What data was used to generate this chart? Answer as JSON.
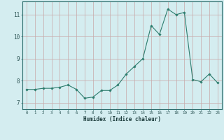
{
  "x": [
    0,
    1,
    2,
    3,
    4,
    5,
    6,
    7,
    8,
    9,
    10,
    11,
    12,
    13,
    14,
    15,
    16,
    17,
    18,
    19,
    20,
    21,
    22,
    23
  ],
  "y": [
    7.6,
    7.6,
    7.65,
    7.65,
    7.7,
    7.8,
    7.6,
    7.2,
    7.25,
    7.55,
    7.55,
    7.8,
    8.3,
    8.65,
    9.0,
    10.5,
    10.1,
    11.25,
    11.0,
    11.1,
    8.05,
    7.95,
    8.3,
    7.9
  ],
  "xlabel": "Humidex (Indice chaleur)",
  "ylim": [
    6.7,
    11.6
  ],
  "xlim": [
    -0.5,
    23.5
  ],
  "yticks": [
    7,
    8,
    9,
    10,
    11
  ],
  "xticks": [
    0,
    1,
    2,
    3,
    4,
    5,
    6,
    7,
    8,
    9,
    10,
    11,
    12,
    13,
    14,
    15,
    16,
    17,
    18,
    19,
    20,
    21,
    22,
    23
  ],
  "line_color": "#2e7d6e",
  "marker": "D",
  "marker_size": 1.8,
  "bg_color": "#d4edf0",
  "grid_color": "#c8a8a8",
  "axis_color": "#2e6e6e",
  "tick_label_color": "#2e5555",
  "xlabel_color": "#1a3a3a"
}
